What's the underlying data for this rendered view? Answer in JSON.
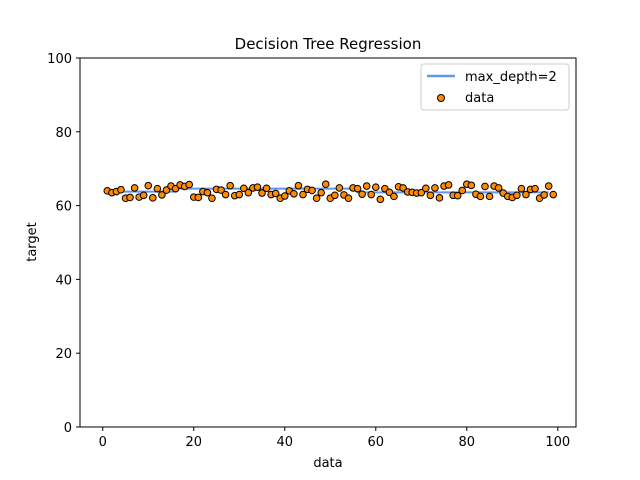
{
  "chart_data": {
    "type": "scatter",
    "title": "Decision Tree Regression",
    "xlabel": "data",
    "ylabel": "target",
    "xlim": [
      -5,
      104
    ],
    "ylim": [
      0,
      100
    ],
    "xticks": [
      0,
      20,
      40,
      60,
      80,
      100
    ],
    "yticks": [
      0,
      20,
      40,
      60,
      80,
      100
    ],
    "grid": false,
    "legend_position": "top-right",
    "series": [
      {
        "name": "max_depth=2",
        "kind": "line",
        "color": "#6495ed",
        "x": [
          1,
          16,
          16,
          17,
          55,
          56,
          98
        ],
        "y": [
          63.8,
          63.8,
          64.6,
          64.6,
          64.6,
          63.6,
          63.6
        ]
      },
      {
        "name": "data",
        "kind": "scatter",
        "color": "#ff8c00",
        "edge_color": "#000000",
        "x": [
          1,
          2,
          3,
          4,
          5,
          6,
          7,
          8,
          9,
          10,
          11,
          12,
          13,
          14,
          15,
          16,
          17,
          18,
          19,
          20,
          21,
          22,
          23,
          24,
          25,
          26,
          27,
          28,
          29,
          30,
          31,
          32,
          33,
          34,
          35,
          36,
          37,
          38,
          39,
          40,
          41,
          42,
          43,
          44,
          45,
          46,
          47,
          48,
          49,
          50,
          51,
          52,
          53,
          54,
          55,
          56,
          57,
          58,
          59,
          60,
          61,
          62,
          63,
          64,
          65,
          66,
          67,
          68,
          69,
          70,
          71,
          72,
          73,
          74,
          75,
          76,
          77,
          78,
          79,
          80,
          81,
          82,
          83,
          84,
          85,
          86,
          87,
          88,
          89,
          90,
          91,
          92,
          93,
          94,
          95,
          96,
          97,
          98,
          99
        ],
        "y": [
          64.0,
          63.5,
          63.8,
          64.3,
          62.0,
          62.2,
          64.8,
          62.3,
          62.8,
          65.4,
          62.1,
          64.6,
          62.9,
          64.2,
          65.3,
          64.6,
          65.6,
          65.2,
          65.7,
          62.3,
          62.2,
          63.8,
          63.5,
          62.0,
          64.4,
          64.2,
          63.0,
          65.4,
          62.7,
          63.0,
          64.7,
          63.5,
          64.8,
          65.0,
          63.4,
          64.7,
          63.0,
          63.3,
          62.0,
          62.6,
          64.0,
          63.2,
          65.4,
          63.0,
          64.4,
          64.1,
          62.0,
          63.5,
          65.8,
          62.0,
          62.8,
          64.8,
          62.9,
          62.0,
          64.8,
          64.6,
          63.1,
          65.3,
          63.0,
          65.0,
          61.7,
          64.6,
          63.6,
          62.5,
          65.1,
          64.8,
          63.7,
          63.6,
          63.4,
          63.5,
          64.7,
          62.8,
          64.8,
          62.1,
          65.3,
          65.6,
          62.8,
          62.7,
          64.1,
          65.8,
          65.5,
          63.1,
          62.5,
          65.2,
          62.5,
          65.3,
          64.8,
          63.4,
          62.5,
          62.2,
          62.8,
          64.6,
          63.0,
          64.4,
          64.6,
          62.0,
          62.9,
          65.3,
          63.0
        ]
      }
    ]
  }
}
